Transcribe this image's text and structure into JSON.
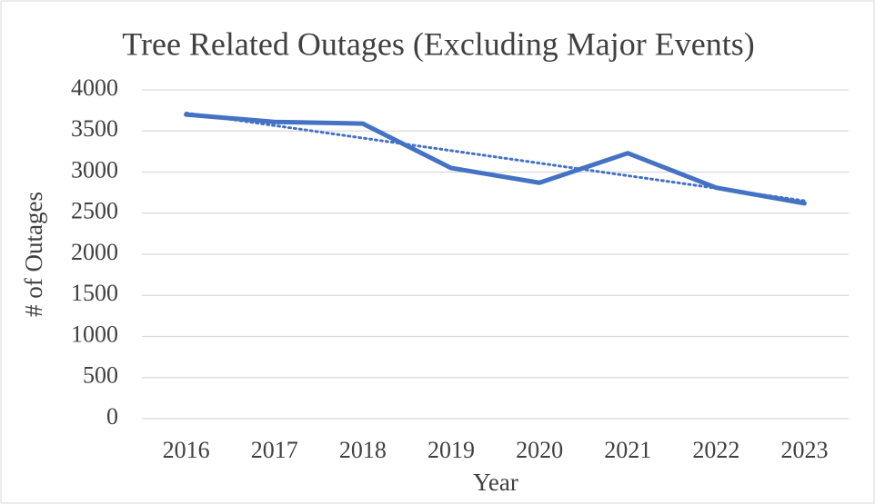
{
  "chart_data": {
    "type": "line",
    "title": "Tree Related Outages (Excluding Major Events)",
    "x_label": "Year",
    "y_label": "# of Outages",
    "categories": [
      "2016",
      "2017",
      "2018",
      "2019",
      "2020",
      "2021",
      "2022",
      "2023"
    ],
    "values": [
      3700,
      3610,
      3590,
      3050,
      2870,
      3230,
      2810,
      2620
    ],
    "color": "#4472c4",
    "trendline": "linear",
    "ylim": [
      0,
      4000
    ],
    "yticks": [
      0,
      500,
      1000,
      1500,
      2000,
      2500,
      3000,
      3500,
      4000
    ],
    "grid": true
  }
}
